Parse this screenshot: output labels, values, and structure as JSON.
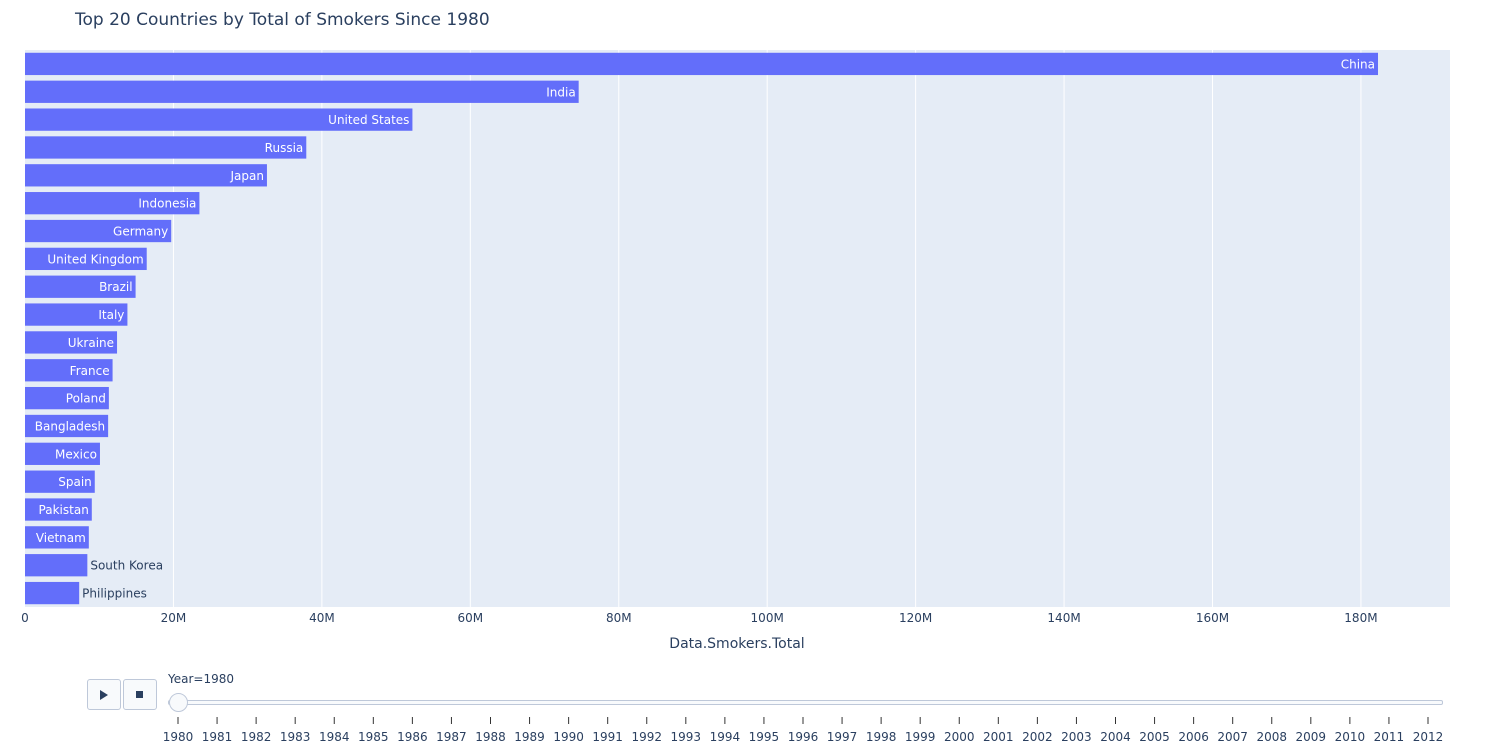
{
  "chart_data": {
    "type": "bar",
    "orientation": "horizontal",
    "title": "Top 20 Countries by Total of Smokers Since 1980",
    "xlabel": "Data.Smokers.Total",
    "xlim": [
      0,
      192000000
    ],
    "xticks": [
      0,
      20000000,
      40000000,
      60000000,
      80000000,
      100000000,
      120000000,
      140000000,
      160000000,
      180000000
    ],
    "xtick_labels": [
      "0",
      "20M",
      "40M",
      "60M",
      "80M",
      "100M",
      "120M",
      "140M",
      "160M",
      "180M"
    ],
    "grid": true,
    "categories": [
      "China",
      "India",
      "United States",
      "Russia",
      "Japan",
      "Indonesia",
      "Germany",
      "United Kingdom",
      "Brazil",
      "Italy",
      "Ukraine",
      "France",
      "Poland",
      "Bangladesh",
      "Mexico",
      "Spain",
      "Pakistan",
      "Vietnam",
      "South Korea",
      "Philippines"
    ],
    "values": [
      182300000,
      74600000,
      52200000,
      37900000,
      32600000,
      23500000,
      19700000,
      16400000,
      14900000,
      13800000,
      12400000,
      11800000,
      11300000,
      11200000,
      10100000,
      9400000,
      9000000,
      8600000,
      8400000,
      7300000
    ],
    "bar_color": "#636efa",
    "plot_bg": "#e5ecf6"
  },
  "animation": {
    "play_icon": "play-icon",
    "stop_icon": "stop-icon",
    "current_label": "Year=1980",
    "current_index": 0,
    "steps": [
      "1980",
      "1981",
      "1982",
      "1983",
      "1984",
      "1985",
      "1986",
      "1987",
      "1988",
      "1989",
      "1990",
      "1991",
      "1992",
      "1993",
      "1994",
      "1995",
      "1996",
      "1997",
      "1998",
      "1999",
      "2000",
      "2001",
      "2002",
      "2003",
      "2004",
      "2005",
      "2006",
      "2007",
      "2008",
      "2009",
      "2010",
      "2011",
      "2012"
    ]
  }
}
